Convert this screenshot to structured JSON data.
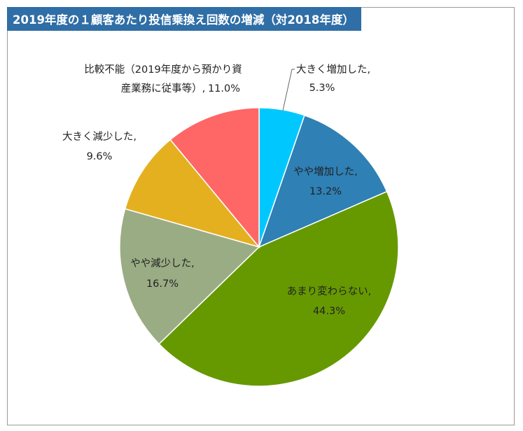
{
  "title": "2019年度の１顧客あたり投信乗換え回数の増減（対2018年度）",
  "chart_data": {
    "type": "pie",
    "title": "2019年度の１顧客あたり投信乗換え回数の増減（対2018年度）",
    "start_angle_deg": 0,
    "direction": "clockwise",
    "slices": [
      {
        "label": "大きく増加した",
        "value": 5.3,
        "value_label": "5.3%",
        "color": "#00c8ff"
      },
      {
        "label": "やや増加した",
        "value": 13.2,
        "value_label": "13.2%",
        "color": "#2e80b5"
      },
      {
        "label": "あまり変わらない",
        "value": 44.3,
        "value_label": "44.3%",
        "color": "#669900"
      },
      {
        "label": "やや減少した",
        "value": 16.7,
        "value_label": "16.7%",
        "color": "#9aac84"
      },
      {
        "label": "大きく減少した",
        "value": 9.6,
        "value_label": "9.6%",
        "color": "#e5b020"
      },
      {
        "label": "比較不能（2019年度から預かり資産業務に従事等）",
        "value": 11.0,
        "value_label": "11.0%",
        "color": "#ff6666"
      }
    ]
  }
}
